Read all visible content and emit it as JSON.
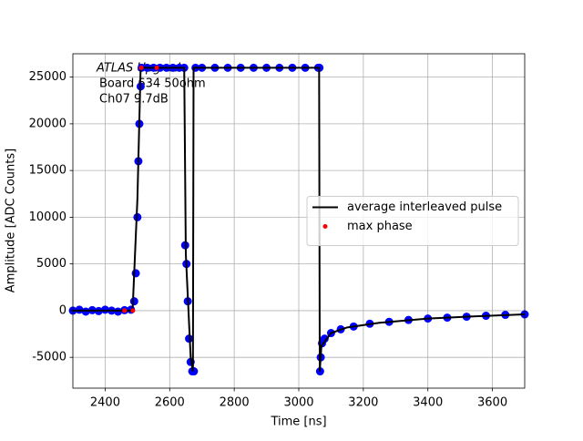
{
  "chart_data": {
    "type": "line",
    "xlabel": "Time [ns]",
    "ylabel": "Amplitude [ADC Counts]",
    "annotations": [
      "ATLAS Upgrade",
      "Board 634 50ohm",
      "Ch07 9.7dB"
    ],
    "xlim": [
      2300,
      3700
    ],
    "ylim": [
      -8300,
      27500
    ],
    "xticks": [
      2400,
      2600,
      2800,
      3000,
      3200,
      3400,
      3600
    ],
    "yticks": [
      -5000,
      0,
      5000,
      10000,
      15000,
      20000,
      25000
    ],
    "grid": true,
    "legend": "center right",
    "series": [
      {
        "style": "marker",
        "color": "#0000ff",
        "x": [
          2300,
          2320,
          2340,
          2360,
          2380,
          2400,
          2420,
          2440,
          2460,
          2480,
          2490,
          2495,
          2500,
          2503,
          2506,
          2510,
          2513,
          2530,
          2550,
          2570,
          2590,
          2610,
          2630,
          2645,
          2648,
          2652,
          2656,
          2660,
          2665,
          2670,
          2675,
          2680,
          2700,
          2740,
          2780,
          2820,
          2860,
          2900,
          2940,
          2980,
          3020,
          3060,
          3064,
          3066,
          3068,
          3072,
          3080,
          3100,
          3130,
          3170,
          3220,
          3280,
          3340,
          3400,
          3460,
          3520,
          3580,
          3640,
          3700
        ],
        "values": [
          0,
          100,
          -100,
          50,
          -50,
          100,
          0,
          -100,
          50,
          100,
          1000,
          4000,
          10000,
          16000,
          20000,
          24000,
          26000,
          26000,
          26000,
          26000,
          26000,
          26000,
          26000,
          26000,
          7000,
          5000,
          1000,
          -3000,
          -5500,
          -6500,
          -6500,
          26000,
          26000,
          26000,
          26000,
          26000,
          26000,
          26000,
          26000,
          26000,
          26000,
          26000,
          26000,
          -6500,
          -5000,
          -3500,
          -3000,
          -2400,
          -2000,
          -1700,
          -1400,
          -1200,
          -1000,
          -850,
          -750,
          -650,
          -550,
          -450,
          -400
        ]
      },
      {
        "name": "average interleaved pulse",
        "style": "line",
        "color": "#000000",
        "x": [
          2300,
          2485,
          2500,
          2510,
          2645,
          2650,
          2665,
          2672,
          2674,
          3063,
          3065,
          3070,
          3100,
          3150,
          3250,
          3400,
          3550,
          3700
        ],
        "values": [
          0,
          0,
          12000,
          26000,
          26000,
          6000,
          -5000,
          -6500,
          26000,
          26000,
          -6500,
          -3800,
          -2400,
          -1800,
          -1300,
          -850,
          -600,
          -400
        ]
      },
      {
        "name": "max phase",
        "style": "marker",
        "color": "#ff0000",
        "x": [
          2460,
          2486,
          2512,
          2560
        ],
        "values": [
          0,
          0,
          26000,
          26000
        ]
      }
    ]
  }
}
